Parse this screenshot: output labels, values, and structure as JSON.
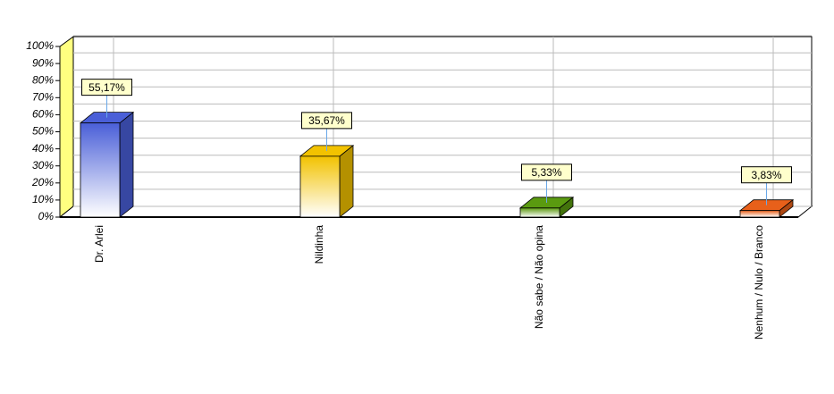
{
  "chart_data": {
    "type": "bar3d",
    "categories": [
      "Dr. Arlei",
      "Nildinha",
      "Não sabe / Não opina",
      "Nenhum / Nulo / Branco"
    ],
    "values": [
      55.17,
      35.67,
      5.33,
      3.83
    ],
    "value_labels": [
      "55,17%",
      "35,67%",
      "5,33%",
      "3,83%"
    ],
    "colors": [
      "#4a5fd8",
      "#f2c200",
      "#5a9a10",
      "#e8601a"
    ],
    "ylim": [
      0,
      100
    ],
    "yticks": [
      {
        "value": 0,
        "label": "0%"
      },
      {
        "value": 10,
        "label": "10%"
      },
      {
        "value": 20,
        "label": "20%"
      },
      {
        "value": 30,
        "label": "30%"
      },
      {
        "value": 40,
        "label": "40%"
      },
      {
        "value": 50,
        "label": "50%"
      },
      {
        "value": 60,
        "label": "60%"
      },
      {
        "value": 70,
        "label": "70%"
      },
      {
        "value": 80,
        "label": "80%"
      },
      {
        "value": 90,
        "label": "90%"
      },
      {
        "value": 100,
        "label": "100%"
      }
    ],
    "grid": true
  }
}
